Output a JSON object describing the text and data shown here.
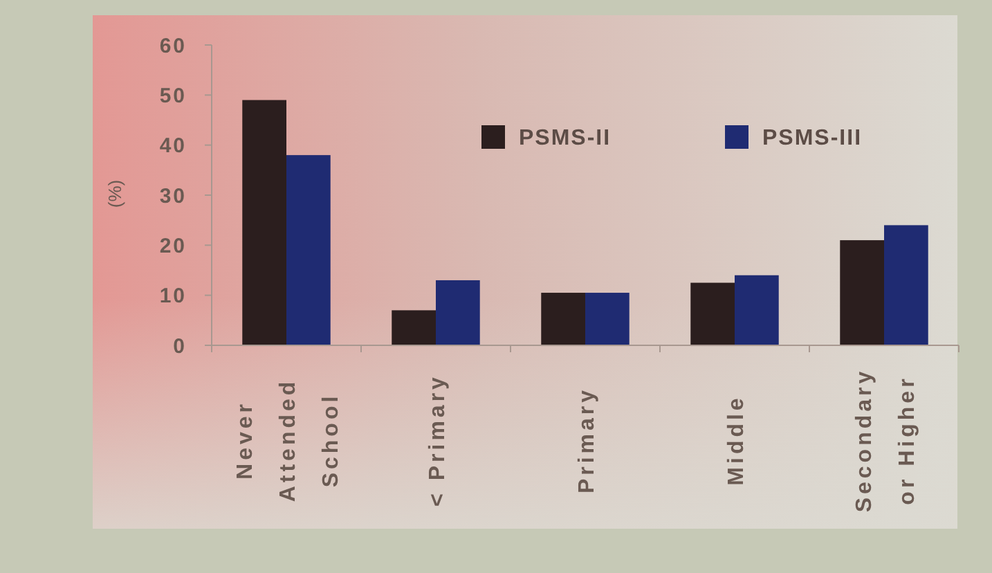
{
  "chart_data": {
    "type": "bar",
    "ylabel": "(%)",
    "categories": [
      "Never Attended School",
      "< Primary",
      "Primary",
      "Middle",
      "Secondary or Higher"
    ],
    "series": [
      {
        "name": "PSMS-II",
        "color": "#2b1e1e",
        "values": [
          49,
          7,
          10.5,
          12.5,
          21
        ]
      },
      {
        "name": "PSMS-III",
        "color": "#1f2b72",
        "values": [
          38,
          13,
          10.5,
          14,
          24
        ]
      }
    ],
    "ylim": [
      0,
      60
    ],
    "yticks": [
      0,
      10,
      20,
      30,
      40,
      50,
      60
    ],
    "legend": "top right"
  }
}
